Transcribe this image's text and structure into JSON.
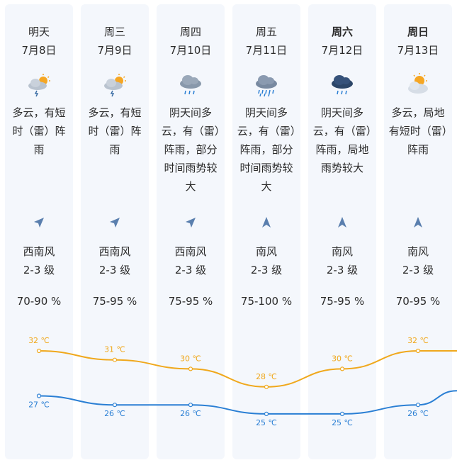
{
  "colors": {
    "card_bg": "#f4f7fc",
    "high_line": "#f0a81c",
    "low_line": "#2a7fd4",
    "wind_arrow": "#5a7fae"
  },
  "days": [
    {
      "name": "明天",
      "date": "7月8日",
      "weekend": false,
      "icon": "cloudy-sun-thunder-rain-icon",
      "condition": "多云，有短时（雷）阵雨",
      "wind_dir": "西南风",
      "wind_level": "2-3 级",
      "humidity": "70-90 %",
      "wind_arrow": "arrow-northeast-icon"
    },
    {
      "name": "周三",
      "date": "7月9日",
      "weekend": false,
      "icon": "cloudy-sun-thunder-rain-icon",
      "condition": "多云，有短时（雷）阵雨",
      "wind_dir": "西南风",
      "wind_level": "2-3 级",
      "humidity": "75-95 %",
      "wind_arrow": "arrow-northeast-icon"
    },
    {
      "name": "周四",
      "date": "7月10日",
      "weekend": false,
      "icon": "overcast-thunder-rain-icon",
      "condition": "阴天间多云，有（雷）阵雨，部分时间雨势较大",
      "wind_dir": "西南风",
      "wind_level": "2-3 级",
      "humidity": "75-95 %",
      "wind_arrow": "arrow-northeast-icon"
    },
    {
      "name": "周五",
      "date": "7月11日",
      "weekend": false,
      "icon": "overcast-heavy-rain-icon",
      "condition": "阴天间多云，有（雷）阵雨，部分时间雨势较大",
      "wind_dir": "南风",
      "wind_level": "2-3 级",
      "humidity": "75-100 %",
      "wind_arrow": "arrow-north-icon"
    },
    {
      "name": "周六",
      "date": "7月12日",
      "weekend": true,
      "icon": "dark-cloud-rain-icon",
      "condition": "阴天间多云，有（雷）阵雨，局地雨势较大",
      "wind_dir": "南风",
      "wind_level": "2-3 级",
      "humidity": "75-95 %",
      "wind_arrow": "arrow-north-icon"
    },
    {
      "name": "周日",
      "date": "7月13日",
      "weekend": true,
      "icon": "sun-behind-cloud-icon",
      "condition": "多云，局地有短时（雷）阵雨",
      "wind_dir": "南风",
      "wind_level": "2-3 级",
      "humidity": "70-95 %",
      "wind_arrow": "arrow-north-icon"
    }
  ],
  "temps": {
    "high": [
      32,
      31,
      30,
      28,
      30,
      32
    ],
    "low": [
      27,
      26,
      26,
      25,
      25,
      26
    ],
    "high_labels": [
      "32 ℃",
      "31 ℃",
      "30 ℃",
      "28 ℃",
      "30 ℃",
      "32 ℃"
    ],
    "low_labels": [
      "27 ℃",
      "26 ℃",
      "26 ℃",
      "25 ℃",
      "25 ℃",
      "26 ℃"
    ]
  }
}
